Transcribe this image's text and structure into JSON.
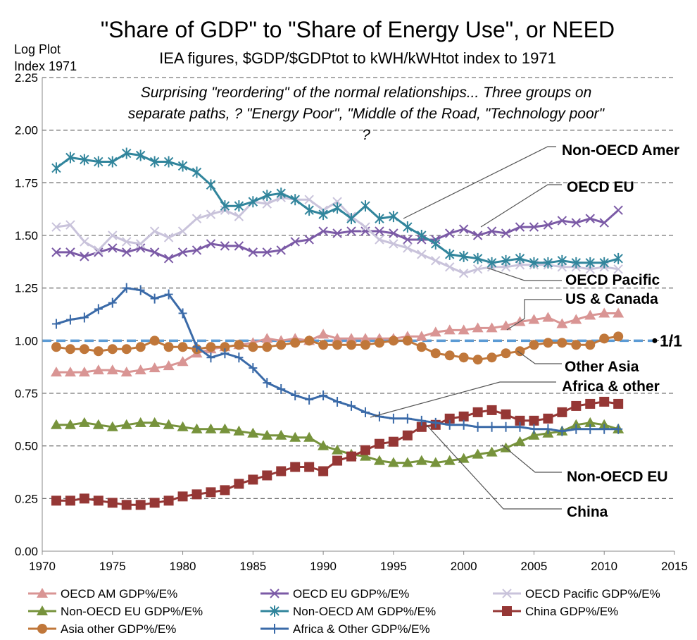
{
  "chart_data": {
    "type": "line",
    "title": "\"Share of GDP\" to \"Share of Energy Use\", or NEED",
    "subtitle": "IEA figures, $GDP/$GDPtot to kWH/kWHtot index to 1971",
    "ylabel_lines": [
      "Log Plot",
      "Index 1971"
    ],
    "annotation_lines": [
      "Surprising \"reordering\" of the normal relationships... Three groups on",
      "separate paths, ? \"Energy Poor\", \"Middle of the Road, \"Technology poor\"",
      "?"
    ],
    "xlim": [
      1970,
      2015
    ],
    "ylim": [
      0,
      2.25
    ],
    "x_ticks": [
      1970,
      1975,
      1980,
      1985,
      1990,
      1995,
      2000,
      2005,
      2010,
      2015
    ],
    "y_ticks": [
      "0.00",
      "0.25",
      "0.50",
      "0.75",
      "1.00",
      "1.25",
      "1.50",
      "1.75",
      "2.00",
      "2.25"
    ],
    "grid": "horizontal dashed",
    "legend_position": "bottom",
    "reference_line": {
      "y": 1.0,
      "label": "1/1",
      "color": "#5b9bd5"
    },
    "x": [
      1971,
      1972,
      1973,
      1974,
      1975,
      1976,
      1977,
      1978,
      1979,
      1980,
      1981,
      1982,
      1983,
      1984,
      1985,
      1986,
      1987,
      1988,
      1989,
      1990,
      1991,
      1992,
      1993,
      1994,
      1995,
      1996,
      1997,
      1998,
      1999,
      2000,
      2001,
      2002,
      2003,
      2004,
      2005,
      2006,
      2007,
      2008,
      2009,
      2010,
      2011
    ],
    "series": [
      {
        "name": "OECD AM GDP%/E%",
        "color": "#d99594",
        "marker": "triangle",
        "values": [
          0.85,
          0.85,
          0.85,
          0.86,
          0.86,
          0.85,
          0.86,
          0.87,
          0.88,
          0.9,
          0.94,
          0.96,
          0.97,
          0.98,
          0.99,
          1.01,
          1.0,
          1.01,
          1.0,
          1.03,
          1.01,
          1.01,
          1.01,
          1.01,
          1.01,
          1.02,
          1.02,
          1.04,
          1.05,
          1.05,
          1.06,
          1.06,
          1.07,
          1.09,
          1.1,
          1.11,
          1.08,
          1.1,
          1.12,
          1.13,
          1.13
        ]
      },
      {
        "name": "OECD EU GDP%/E%",
        "color": "#7b5aa6",
        "marker": "x",
        "values": [
          1.42,
          1.42,
          1.4,
          1.42,
          1.44,
          1.42,
          1.44,
          1.42,
          1.39,
          1.42,
          1.43,
          1.46,
          1.45,
          1.45,
          1.42,
          1.42,
          1.43,
          1.47,
          1.48,
          1.52,
          1.51,
          1.52,
          1.52,
          1.52,
          1.51,
          1.48,
          1.48,
          1.48,
          1.51,
          1.53,
          1.5,
          1.52,
          1.51,
          1.54,
          1.54,
          1.55,
          1.57,
          1.56,
          1.58,
          1.56,
          1.62
        ]
      },
      {
        "name": "OECD Pacific GDP%/E%",
        "color": "#c9c3db",
        "marker": "x",
        "values": [
          1.54,
          1.55,
          1.47,
          1.43,
          1.5,
          1.47,
          1.46,
          1.52,
          1.49,
          1.52,
          1.58,
          1.6,
          1.62,
          1.59,
          1.66,
          1.65,
          1.68,
          1.67,
          1.67,
          1.62,
          1.66,
          1.59,
          1.54,
          1.48,
          1.46,
          1.44,
          1.41,
          1.38,
          1.35,
          1.32,
          1.34,
          1.35,
          1.35,
          1.36,
          1.36,
          1.36,
          1.35,
          1.35,
          1.34,
          1.35,
          1.34
        ]
      },
      {
        "name": "Non-OECD EU GDP%/E%",
        "color": "#77933c",
        "marker": "triangle",
        "values": [
          0.6,
          0.6,
          0.61,
          0.6,
          0.59,
          0.6,
          0.61,
          0.61,
          0.6,
          0.59,
          0.58,
          0.58,
          0.58,
          0.57,
          0.56,
          0.55,
          0.55,
          0.54,
          0.54,
          0.5,
          0.48,
          0.46,
          0.45,
          0.43,
          0.42,
          0.42,
          0.43,
          0.42,
          0.43,
          0.44,
          0.46,
          0.47,
          0.49,
          0.52,
          0.55,
          0.56,
          0.57,
          0.6,
          0.61,
          0.6,
          0.58
        ]
      },
      {
        "name": "Non-OECD AM GDP%/E%",
        "color": "#31859c",
        "marker": "star",
        "values": [
          1.82,
          1.87,
          1.86,
          1.85,
          1.85,
          1.89,
          1.88,
          1.85,
          1.85,
          1.83,
          1.8,
          1.74,
          1.64,
          1.64,
          1.66,
          1.69,
          1.7,
          1.67,
          1.62,
          1.6,
          1.63,
          1.58,
          1.64,
          1.58,
          1.59,
          1.54,
          1.5,
          1.46,
          1.41,
          1.4,
          1.39,
          1.37,
          1.38,
          1.39,
          1.37,
          1.37,
          1.38,
          1.37,
          1.37,
          1.37,
          1.39
        ]
      },
      {
        "name": "China GDP%/E%",
        "color": "#953735",
        "marker": "square",
        "values": [
          0.24,
          0.24,
          0.25,
          0.24,
          0.23,
          0.22,
          0.22,
          0.23,
          0.24,
          0.26,
          0.27,
          0.28,
          0.29,
          0.32,
          0.34,
          0.36,
          0.38,
          0.4,
          0.4,
          0.38,
          0.43,
          0.45,
          0.48,
          0.51,
          0.52,
          0.55,
          0.59,
          0.6,
          0.63,
          0.64,
          0.66,
          0.67,
          0.65,
          0.62,
          0.62,
          0.63,
          0.66,
          0.69,
          0.7,
          0.71,
          0.7
        ]
      },
      {
        "name": "Asia other GDP%/E%",
        "color": "#c0773a",
        "marker": "circle",
        "values": [
          0.97,
          0.96,
          0.96,
          0.95,
          0.96,
          0.96,
          0.97,
          1.0,
          0.97,
          0.97,
          0.96,
          0.97,
          0.97,
          0.98,
          0.97,
          0.97,
          0.98,
          0.99,
          1.0,
          0.98,
          0.98,
          0.98,
          0.98,
          0.99,
          1.0,
          1.0,
          0.97,
          0.94,
          0.93,
          0.92,
          0.91,
          0.92,
          0.94,
          0.95,
          0.98,
          0.99,
          0.99,
          0.98,
          0.98,
          1.01,
          1.02
        ]
      },
      {
        "name": "Africa & Other GDP%/E%",
        "color": "#3a6aa8",
        "marker": "plus",
        "values": [
          1.08,
          1.1,
          1.11,
          1.15,
          1.18,
          1.25,
          1.24,
          1.2,
          1.22,
          1.13,
          0.97,
          0.92,
          0.94,
          0.92,
          0.87,
          0.8,
          0.77,
          0.74,
          0.72,
          0.74,
          0.71,
          0.69,
          0.66,
          0.64,
          0.63,
          0.63,
          0.62,
          0.61,
          0.6,
          0.6,
          0.59,
          0.59,
          0.59,
          0.59,
          0.58,
          0.58,
          0.57,
          0.58,
          0.58,
          0.58,
          0.58
        ]
      }
    ],
    "callouts": [
      "Non-OECD Amer",
      "OECD EU",
      "OECD Pacific",
      "US & Canada",
      "Other Asia",
      "Africa & other",
      "Non-OECD EU",
      "China"
    ]
  }
}
